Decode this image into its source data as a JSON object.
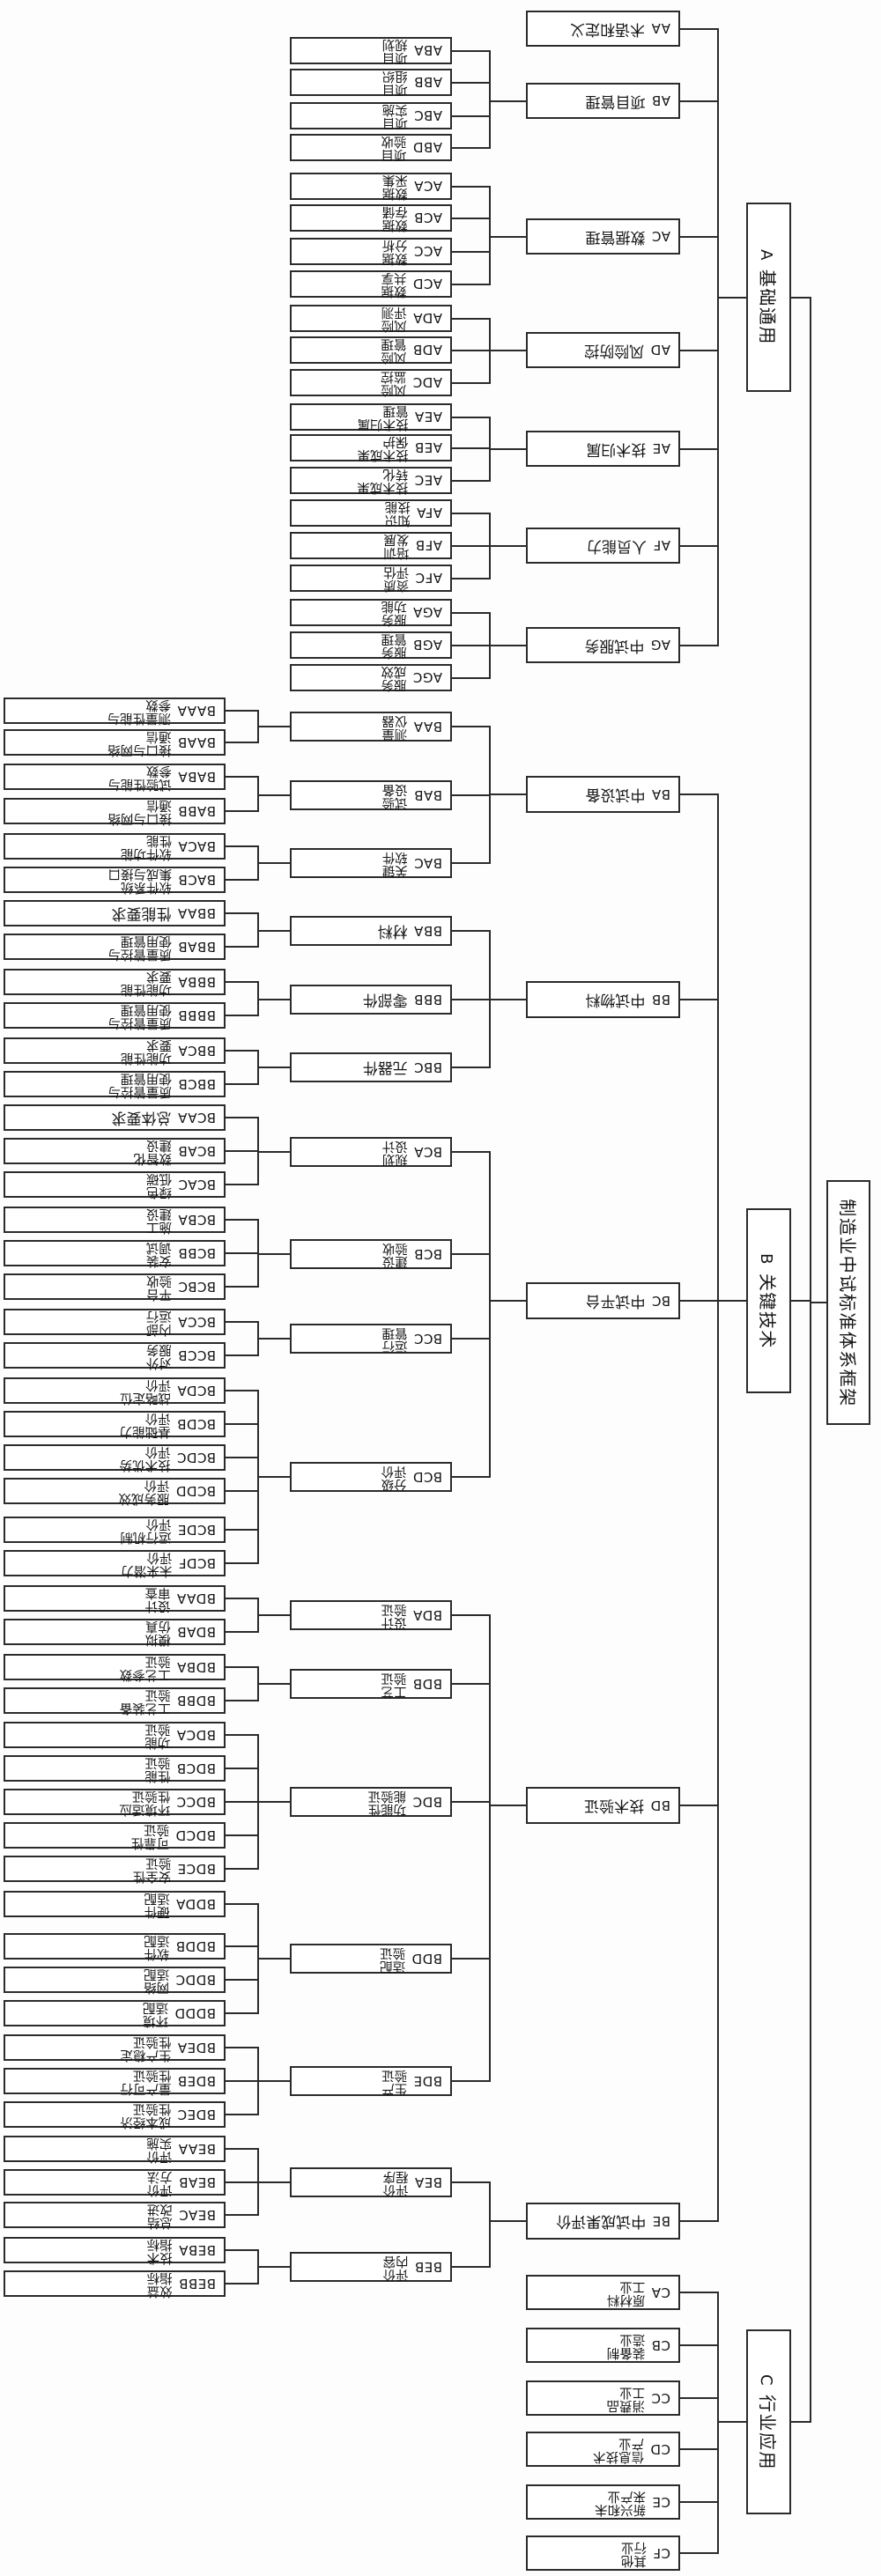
{
  "diagram": {
    "title": "制造业中试标准体系框架",
    "root": {
      "code": "",
      "label": "制造业中试标准体系框架",
      "children": [
        {
          "code": "A",
          "label": "基础通用",
          "children": [
            {
              "code": "AA",
              "label": "术语和定义"
            },
            {
              "code": "AB",
              "label": "项目管理",
              "children": [
                {
                  "code": "ABA",
                  "label": "项目\n规划"
                },
                {
                  "code": "ABB",
                  "label": "项目\n组织"
                },
                {
                  "code": "ABC",
                  "label": "项目\n实施"
                },
                {
                  "code": "ABD",
                  "label": "项目\n验收"
                }
              ]
            },
            {
              "code": "AC",
              "label": "数据管理",
              "children": [
                {
                  "code": "ACA",
                  "label": "数据\n采集"
                },
                {
                  "code": "ACB",
                  "label": "数据\n存储"
                },
                {
                  "code": "ACC",
                  "label": "数据\n分析"
                },
                {
                  "code": "ACD",
                  "label": "数据\n共享"
                }
              ]
            },
            {
              "code": "AD",
              "label": "风险防控",
              "children": [
                {
                  "code": "ADA",
                  "label": "风险\n评测"
                },
                {
                  "code": "ADB",
                  "label": "风险\n管理"
                },
                {
                  "code": "ADC",
                  "label": "风险\n监控"
                }
              ]
            },
            {
              "code": "AE",
              "label": "技术归属",
              "children": [
                {
                  "code": "AEA",
                  "label": "技术归属\n管理"
                },
                {
                  "code": "AEB",
                  "label": "技术成果\n保护"
                },
                {
                  "code": "AEC",
                  "label": "技术成果\n转化"
                }
              ]
            },
            {
              "code": "AF",
              "label": "人员能力",
              "children": [
                {
                  "code": "AFA",
                  "label": "知识\n技能"
                },
                {
                  "code": "AFB",
                  "label": "培训\n发展"
                },
                {
                  "code": "AFC",
                  "label": "资质\n评估"
                }
              ]
            },
            {
              "code": "AG",
              "label": "中试服务",
              "children": [
                {
                  "code": "AGA",
                  "label": "服务\n功能"
                },
                {
                  "code": "AGB",
                  "label": "服务\n管理"
                },
                {
                  "code": "AGC",
                  "label": "服务\n成效"
                }
              ]
            }
          ]
        },
        {
          "code": "B",
          "label": "关键技术",
          "children": [
            {
              "code": "BA",
              "label": "中试设备",
              "children": [
                {
                  "code": "BAA",
                  "label": "测量\n仪器",
                  "children": [
                    {
                      "code": "BAAA",
                      "label": "测量性能与\n参数"
                    },
                    {
                      "code": "BAAB",
                      "label": "接口与网络\n通信"
                    }
                  ]
                },
                {
                  "code": "BAB",
                  "label": "试验\n设备",
                  "children": [
                    {
                      "code": "BABA",
                      "label": "试验性能与\n参数"
                    },
                    {
                      "code": "BABB",
                      "label": "接口与网络\n通信"
                    }
                  ]
                },
                {
                  "code": "BAC",
                  "label": "关键\n软件",
                  "children": [
                    {
                      "code": "BACA",
                      "label": "软件功能\n性能"
                    },
                    {
                      "code": "BACB",
                      "label": "软件系统\n集成与接口"
                    }
                  ]
                }
              ]
            },
            {
              "code": "BB",
              "label": "中试物料",
              "children": [
                {
                  "code": "BBA",
                  "label": "材料",
                  "children": [
                    {
                      "code": "BBAA",
                      "label": "性能要求"
                    },
                    {
                      "code": "BBAB",
                      "label": "质量管控与\n使用管理"
                    }
                  ]
                },
                {
                  "code": "BBB",
                  "label": "零部件",
                  "children": [
                    {
                      "code": "BBBA",
                      "label": "功能性能\n要求"
                    },
                    {
                      "code": "BBBB",
                      "label": "质量管控与\n使用管理"
                    }
                  ]
                },
                {
                  "code": "BBC",
                  "label": "元器件",
                  "children": [
                    {
                      "code": "BBCA",
                      "label": "功能性能\n要求"
                    },
                    {
                      "code": "BBCB",
                      "label": "质量管控与\n使用管理"
                    }
                  ]
                }
              ]
            },
            {
              "code": "BC",
              "label": "中试平台",
              "children": [
                {
                  "code": "BCA",
                  "label": "规划\n设计",
                  "children": [
                    {
                      "code": "BCAA",
                      "label": "总体要求"
                    },
                    {
                      "code": "BCAB",
                      "label": "数智化\n建设"
                    },
                    {
                      "code": "BCAC",
                      "label": "绿色\n低碳"
                    }
                  ]
                },
                {
                  "code": "BCB",
                  "label": "建设\n验收",
                  "children": [
                    {
                      "code": "BCBA",
                      "label": "施工\n建设"
                    },
                    {
                      "code": "BCBB",
                      "label": "安装\n调试"
                    },
                    {
                      "code": "BCBC",
                      "label": "平台\n验收"
                    }
                  ]
                },
                {
                  "code": "BCC",
                  "label": "运行\n管理",
                  "children": [
                    {
                      "code": "BCCA",
                      "label": "内部\n运行"
                    },
                    {
                      "code": "BCCB",
                      "label": "对外\n服务"
                    }
                  ]
                },
                {
                  "code": "BCD",
                  "label": "分级\n评价",
                  "children": [
                    {
                      "code": "BCDA",
                      "label": "战略定位\n评价"
                    },
                    {
                      "code": "BCDB",
                      "label": "基础能力\n评价"
                    },
                    {
                      "code": "BCDC",
                      "label": "技术优势\n评价"
                    },
                    {
                      "code": "BCDD",
                      "label": "服务成效\n评价"
                    },
                    {
                      "code": "BCDE",
                      "label": "运行机制\n评价"
                    },
                    {
                      "code": "BCDF",
                      "label": "未来潜力\n评价"
                    }
                  ]
                }
              ]
            },
            {
              "code": "BD",
              "label": "技术验证",
              "children": [
                {
                  "code": "BDA",
                  "label": "设计\n验证",
                  "children": [
                    {
                      "code": "BDAA",
                      "label": "设计\n审查"
                    },
                    {
                      "code": "BDAB",
                      "label": "模拟\n仿真"
                    }
                  ]
                },
                {
                  "code": "BDB",
                  "label": "工艺\n验证",
                  "children": [
                    {
                      "code": "BDBA",
                      "label": "工艺参数\n验证"
                    },
                    {
                      "code": "BDBB",
                      "label": "工艺装备\n验证"
                    }
                  ]
                },
                {
                  "code": "BDC",
                  "label": "功能性\n能验证",
                  "children": [
                    {
                      "code": "BDCA",
                      "label": "功能\n验证"
                    },
                    {
                      "code": "BDCB",
                      "label": "性能\n验证"
                    },
                    {
                      "code": "BDCC",
                      "label": "环境适应\n性验证"
                    },
                    {
                      "code": "BDCD",
                      "label": "可靠性\n验证"
                    },
                    {
                      "code": "BDCE",
                      "label": "安全性\n验证"
                    }
                  ]
                },
                {
                  "code": "BDD",
                  "label": "适配\n验证",
                  "children": [
                    {
                      "code": "BDDA",
                      "label": "硬件\n适配"
                    },
                    {
                      "code": "BDDB",
                      "label": "软件\n适配"
                    },
                    {
                      "code": "BDDC",
                      "label": "网络\n适配"
                    },
                    {
                      "code": "BDDD",
                      "label": "环境\n适配"
                    }
                  ]
                },
                {
                  "code": "BDE",
                  "label": "生产\n验证",
                  "children": [
                    {
                      "code": "BDEA",
                      "label": "生产稳定\n性验证"
                    },
                    {
                      "code": "BDEB",
                      "label": "量产可行\n性验证"
                    },
                    {
                      "code": "BDEC",
                      "label": "成本经济\n性验证"
                    }
                  ]
                }
              ]
            },
            {
              "code": "BE",
              "label": "中试成果评价",
              "children": [
                {
                  "code": "BEA",
                  "label": "评价\n程序",
                  "children": [
                    {
                      "code": "BEAA",
                      "label": "评价\n实施"
                    },
                    {
                      "code": "BEAB",
                      "label": "评价\n方法"
                    },
                    {
                      "code": "BEAC",
                      "label": "总结\n改进"
                    }
                  ]
                },
                {
                  "code": "BEB",
                  "label": "评价\n内容",
                  "children": [
                    {
                      "code": "BEBA",
                      "label": "技术\n指标"
                    },
                    {
                      "code": "BEBB",
                      "label": "效益\n指标"
                    }
                  ]
                }
              ]
            }
          ]
        },
        {
          "code": "C",
          "label": "行业应用",
          "children": [
            {
              "code": "CA",
              "label": "原材料\n工业"
            },
            {
              "code": "CB",
              "label": "装备制\n造业"
            },
            {
              "code": "CC",
              "label": "消费品\n工业"
            },
            {
              "code": "CD",
              "label": "信息技术\n产业"
            },
            {
              "code": "CE",
              "label": "新兴和未\n来产业"
            },
            {
              "code": "CF",
              "label": "其他\n行业"
            }
          ]
        }
      ]
    }
  }
}
